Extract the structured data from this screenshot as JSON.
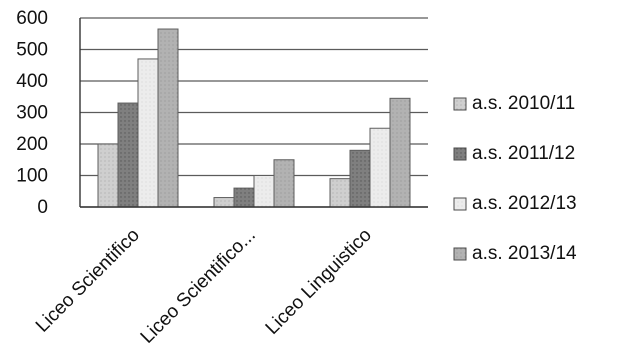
{
  "chart_data": {
    "type": "bar",
    "categories": [
      "Liceo Scientifico",
      "Liceo Scientifico...",
      "Liceo Linguistico"
    ],
    "series": [
      {
        "name": "a.s. 2010/11",
        "values": [
          200,
          30,
          90
        ],
        "color": "#c8c8c8"
      },
      {
        "name": "a.s. 2011/12",
        "values": [
          330,
          60,
          180
        ],
        "color": "#8b8b8b"
      },
      {
        "name": "a.s. 2012/13",
        "values": [
          470,
          100,
          250
        ],
        "color": "#e4e4e4"
      },
      {
        "name": "a.s. 2013/14",
        "values": [
          565,
          150,
          345
        ],
        "color": "#a9a9a9"
      }
    ],
    "ylim": [
      0,
      600
    ],
    "yticks": [
      "0",
      "100",
      "200",
      "300",
      "400",
      "500",
      "600"
    ],
    "grid": true,
    "legend_position": "right"
  }
}
